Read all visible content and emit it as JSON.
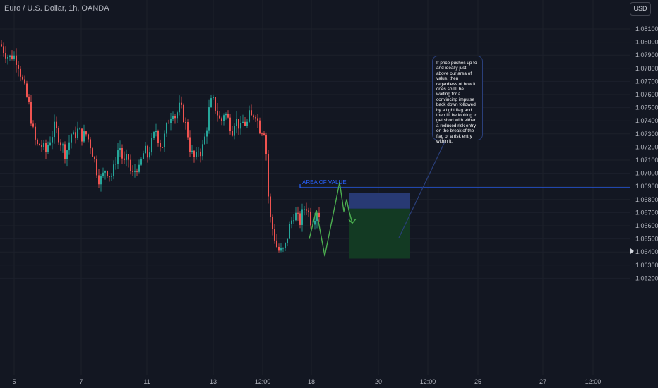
{
  "header": {
    "symbol_title": "Euro / U.S. Dollar, 1h, OANDA",
    "currency_button": "USD"
  },
  "annotations": {
    "area_of_value_label": "AREA OF VALUE",
    "callout_text": "If price pushes up to and ideally just above our area of value, then regardless of how it does so I'll be waiting for a convincing impulse back down followed by a tight flag and then I'll be looking to get short with either a reduced risk entry on the break of the flag or a risk entry within it."
  },
  "colors": {
    "background": "#131722",
    "bull": "#26a69a",
    "bear": "#ef5350",
    "area_line": "#2962ff",
    "projection": "#4caf50",
    "stop_zone": "#283a74",
    "target_zone": "#133a23"
  },
  "chart_data": {
    "type": "candlestick",
    "title": "Euro / U.S. Dollar, 1h, OANDA",
    "y_axis": {
      "ticks": [
        "1.08100",
        "1.08000",
        "1.07900",
        "1.07800",
        "1.07700",
        "1.07600",
        "1.07500",
        "1.07400",
        "1.07300",
        "1.07200",
        "1.07100",
        "1.07000",
        "1.06900",
        "1.06800",
        "1.06700",
        "1.06600",
        "1.06500",
        "1.06400",
        "1.06300",
        "1.06200"
      ],
      "range": [
        1.0615,
        1.0815
      ]
    },
    "x_axis": {
      "ticks": [
        "5",
        "7",
        "11",
        "13",
        "12:00",
        "18",
        "20",
        "12:00",
        "25",
        "27",
        "12:00"
      ]
    },
    "price_path": [
      [
        0,
        1.0798
      ],
      [
        6,
        1.0792
      ],
      [
        12,
        1.0788
      ],
      [
        18,
        1.079
      ],
      [
        24,
        1.0785
      ],
      [
        30,
        1.0772
      ],
      [
        36,
        1.076
      ],
      [
        40,
        1.0752
      ],
      [
        44,
        1.0738
      ],
      [
        48,
        1.0726
      ],
      [
        52,
        1.0721
      ],
      [
        56,
        1.0722
      ],
      [
        60,
        1.072
      ],
      [
        64,
        1.0716
      ],
      [
        68,
        1.0724
      ],
      [
        72,
        1.0728
      ],
      [
        76,
        1.0735
      ],
      [
        80,
        1.0731
      ],
      [
        84,
        1.0725
      ],
      [
        88,
        1.072
      ],
      [
        92,
        1.0714
      ],
      [
        96,
        1.0722
      ],
      [
        100,
        1.073
      ],
      [
        104,
        1.0727
      ],
      [
        108,
        1.0733
      ],
      [
        112,
        1.0731
      ],
      [
        116,
        1.0727
      ],
      [
        120,
        1.0731
      ],
      [
        124,
        1.0726
      ],
      [
        128,
        1.072
      ],
      [
        132,
        1.0712
      ],
      [
        136,
        1.0702
      ],
      [
        140,
        1.0694
      ],
      [
        144,
        1.0697
      ],
      [
        148,
        1.0703
      ],
      [
        152,
        1.0701
      ],
      [
        156,
        1.0697
      ],
      [
        160,
        1.0703
      ],
      [
        164,
        1.0713
      ],
      [
        168,
        1.0722
      ],
      [
        172,
        1.0712
      ],
      [
        176,
        1.0706
      ],
      [
        180,
        1.0714
      ],
      [
        184,
        1.0701
      ],
      [
        188,
        1.0698
      ],
      [
        192,
        1.0706
      ],
      [
        196,
        1.0702
      ],
      [
        200,
        1.0712
      ],
      [
        204,
        1.0718
      ],
      [
        208,
        1.0713
      ],
      [
        212,
        1.072
      ],
      [
        216,
        1.0727
      ],
      [
        220,
        1.0733
      ],
      [
        224,
        1.0725
      ],
      [
        228,
        1.0719
      ],
      [
        232,
        1.0728
      ],
      [
        236,
        1.0737
      ],
      [
        240,
        1.0744
      ],
      [
        244,
        1.0748
      ],
      [
        248,
        1.0742
      ],
      [
        252,
        1.0751
      ],
      [
        256,
        1.0748
      ],
      [
        260,
        1.0741
      ],
      [
        264,
        1.0733
      ],
      [
        268,
        1.0719
      ],
      [
        272,
        1.0713
      ],
      [
        276,
        1.071
      ],
      [
        280,
        1.0718
      ],
      [
        284,
        1.0716
      ],
      [
        288,
        1.0724
      ],
      [
        292,
        1.0736
      ],
      [
        296,
        1.0752
      ],
      [
        300,
        1.0756
      ],
      [
        304,
        1.075
      ],
      [
        308,
        1.0744
      ],
      [
        312,
        1.0738
      ],
      [
        316,
        1.0746
      ],
      [
        320,
        1.0744
      ],
      [
        324,
        1.0738
      ],
      [
        328,
        1.0733
      ],
      [
        332,
        1.0742
      ],
      [
        336,
        1.0738
      ],
      [
        340,
        1.0734
      ],
      [
        344,
        1.074
      ],
      [
        348,
        1.0736
      ],
      [
        352,
        1.0744
      ],
      [
        356,
        1.0742
      ],
      [
        360,
        1.0748
      ],
      [
        364,
        1.074
      ],
      [
        368,
        1.0732
      ],
      [
        372,
        1.0735
      ],
      [
        375,
        1.0728
      ],
      [
        378,
        1.069
      ],
      [
        381,
        1.0668
      ],
      [
        384,
        1.066
      ],
      [
        388,
        1.0651
      ],
      [
        392,
        1.0642
      ],
      [
        396,
        1.064
      ],
      [
        400,
        1.0641
      ],
      [
        404,
        1.0646
      ],
      [
        408,
        1.0658
      ],
      [
        412,
        1.0664
      ],
      [
        416,
        1.067
      ],
      [
        420,
        1.0666
      ],
      [
        424,
        1.0663
      ],
      [
        428,
        1.0671
      ],
      [
        432,
        1.0676
      ],
      [
        436,
        1.067
      ],
      [
        440,
        1.0662
      ],
      [
        444,
        1.0667
      ],
      [
        448,
        1.0672
      ],
      [
        452,
        1.0668
      ]
    ],
    "area_of_value": {
      "price": 1.0689,
      "x_start": 425
    },
    "position": {
      "entry": 1.0673,
      "stop": 1.0685,
      "target": 1.0635
    },
    "projection": [
      [
        438,
        1.065
      ],
      [
        448,
        1.0672
      ],
      [
        460,
        1.0637
      ],
      [
        481,
        1.0693
      ],
      [
        487,
        1.0671
      ],
      [
        491,
        1.068
      ],
      [
        494,
        1.0672
      ],
      [
        499,
        1.0662
      ]
    ]
  }
}
